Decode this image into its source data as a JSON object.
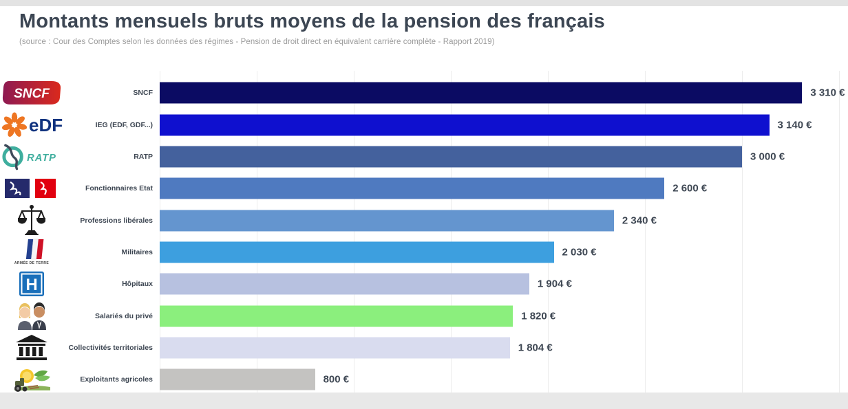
{
  "header": {
    "title": "Montants mensuels bruts moyens de la pension des français",
    "subtitle": "(source : Cour des Comptes selon les données des régimes - Pension de droit direct en équivalent carrière complète - Rapport 2019)"
  },
  "chart_data": {
    "type": "bar",
    "orientation": "horizontal",
    "title": "Montants mensuels bruts moyens de la pension des français",
    "source": "Cour des Comptes selon les données des régimes - Pension de droit direct en équivalent carrière complète - Rapport 2019",
    "unit": "€",
    "xlim": [
      0,
      3500
    ],
    "gridline_step": 500,
    "grid": true,
    "legend": false,
    "highlight_color": "#8bef7d",
    "categories": [
      "SNCF",
      "IEG (EDF, GDF...)",
      "RATP",
      "Fonctionnaires Etat",
      "Professions libérales",
      "Militaires",
      "Hôpitaux",
      "Salariés du privé",
      "Collectivités territoriales",
      "Exploitants agricoles"
    ],
    "values": [
      3310,
      3140,
      3000,
      2600,
      2340,
      2030,
      1904,
      1820,
      1804,
      800
    ],
    "rows": [
      {
        "label": "SNCF",
        "value": 3310,
        "display": "3 310 €",
        "color": "#0b0b63",
        "icon": "sncf-logo"
      },
      {
        "label": "IEG (EDF, GDF...)",
        "value": 3140,
        "display": "3 140 €",
        "color": "#0f10cf",
        "icon": "edf-logo"
      },
      {
        "label": "RATP",
        "value": 3000,
        "display": "3 000 €",
        "color": "#44619d",
        "icon": "ratp-logo"
      },
      {
        "label": "Fonctionnaires Etat",
        "value": 2600,
        "display": "2 600 €",
        "color": "#4f7ac0",
        "icon": "french-state-logo"
      },
      {
        "label": "Professions libérales",
        "value": 2340,
        "display": "2 340 €",
        "color": "#6495cf",
        "icon": "justice-scales-icon"
      },
      {
        "label": "Militaires",
        "value": 2030,
        "display": "2 030 €",
        "color": "#3d9fdf",
        "icon": "army-flag-icon"
      },
      {
        "label": "Hôpitaux",
        "value": 1904,
        "display": "1 904 €",
        "color": "#b7c1e0",
        "icon": "hospital-icon"
      },
      {
        "label": "Salariés du privé",
        "value": 1820,
        "display": "1 820 €",
        "color": "#8bef7d",
        "icon": "workers-icon"
      },
      {
        "label": "Collectivités territoriales",
        "value": 1804,
        "display": "1 804 €",
        "color": "#d9dcef",
        "icon": "town-hall-icon"
      },
      {
        "label": "Exploitants agricoles",
        "value": 800,
        "display": "800 €",
        "color": "#c4c3c1",
        "icon": "farm-icon"
      }
    ]
  },
  "logos": {
    "sncf_text": "SNCF",
    "edf_text": "eDF",
    "ratp_text": "RATP",
    "hospital_letter": "H",
    "army_caption": "ARMÉE DE TERRE"
  }
}
